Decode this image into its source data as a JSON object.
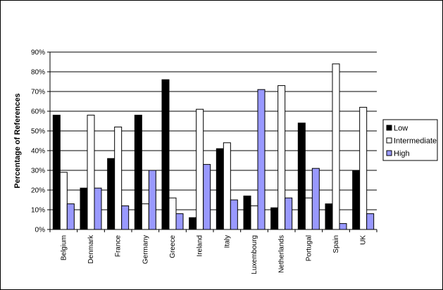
{
  "chart_data": {
    "type": "bar",
    "title": "",
    "xlabel": "",
    "ylabel": "Percentage of References",
    "ylim": [
      0,
      90
    ],
    "yticks": [
      "0%",
      "10%",
      "20%",
      "30%",
      "40%",
      "50%",
      "60%",
      "70%",
      "80%",
      "90%"
    ],
    "grid": true,
    "legend_position": "right",
    "categories": [
      "Belgium",
      "Denmark",
      "France",
      "Germany",
      "Greece",
      "Ireland",
      "Italy",
      "Luxembourg",
      "Netherlands",
      "Portugal",
      "Spain",
      "UK"
    ],
    "series": [
      {
        "name": "Low",
        "color": "#000000",
        "values": [
          58,
          21,
          36,
          58,
          76,
          6,
          41,
          17,
          11,
          54,
          13,
          30
        ]
      },
      {
        "name": "Intermediate",
        "color": "#ffffff",
        "values": [
          29,
          58,
          52,
          13,
          16,
          61,
          44,
          12,
          73,
          16,
          84,
          62
        ]
      },
      {
        "name": "High",
        "color": "#9999ff",
        "values": [
          13,
          21,
          12,
          30,
          8,
          33,
          15,
          71,
          16,
          31,
          3,
          8
        ]
      }
    ]
  }
}
